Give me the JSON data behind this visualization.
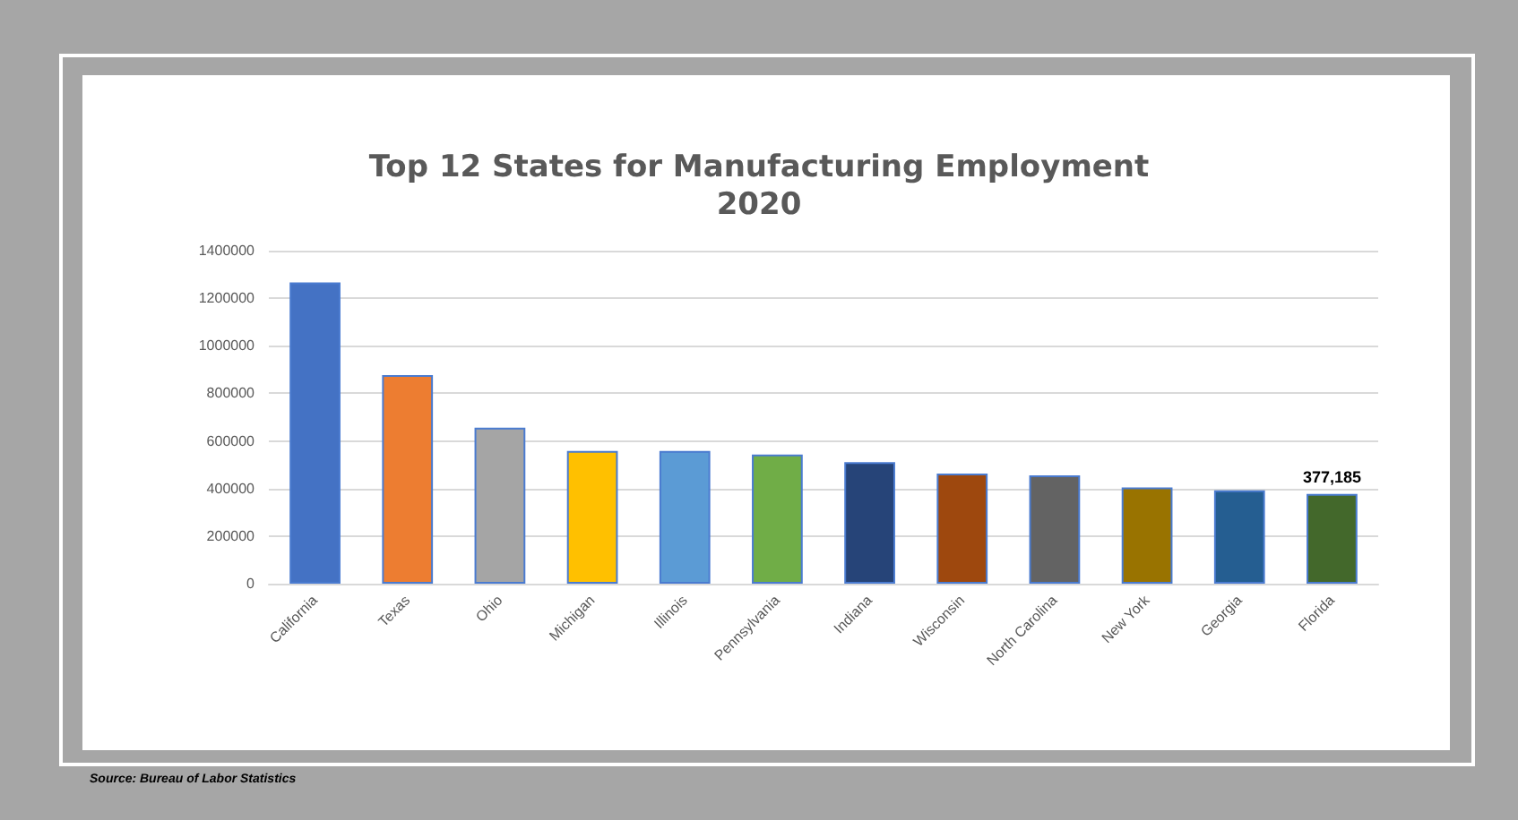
{
  "chart_data": {
    "type": "bar",
    "title": "Top 12 States for Manufacturing Employment",
    "subtitle": "2020",
    "categories": [
      "California",
      "Texas",
      "Ohio",
      "Michigan",
      "Illinois",
      "Pennsylvania",
      "Indiana",
      "Wisconsin",
      "North Carolina",
      "New York",
      "Georgia",
      "Florida"
    ],
    "values": [
      1266000,
      877000,
      656000,
      558000,
      558000,
      543000,
      511000,
      463000,
      455000,
      405000,
      392000,
      377185
    ],
    "colors": [
      "#4472c4",
      "#ed7d31",
      "#a5a5a5",
      "#ffc000",
      "#5b9bd5",
      "#70ad47",
      "#264478",
      "#9e480e",
      "#636363",
      "#997300",
      "#255e91",
      "#43682b"
    ],
    "value_labels": [
      null,
      null,
      null,
      null,
      null,
      null,
      null,
      null,
      null,
      null,
      null,
      "377,185"
    ],
    "ylim": [
      0,
      1400000
    ],
    "yticks": [
      0,
      200000,
      400000,
      600000,
      800000,
      1000000,
      1200000,
      1400000
    ],
    "grid": "y",
    "annotations": [
      "Source: Bureau of Labor Statistics"
    ]
  }
}
